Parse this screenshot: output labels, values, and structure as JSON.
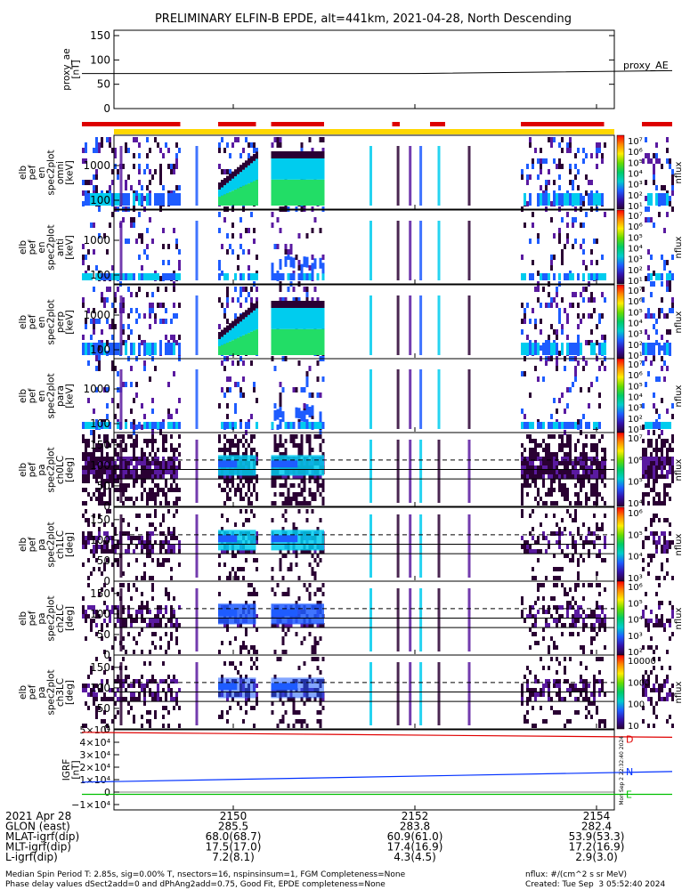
{
  "title": "PRELIMINARY ELFIN-B EPDE, alt=441km, 2021-04-28, North Descending",
  "colors": {
    "coverage_red": "#dd0000",
    "coverage_yellow": "#ffd700",
    "ae_line": "#000000",
    "mag_D": "#e00000",
    "mag_N": "#0030ff",
    "mag_E": "#00c000",
    "fill_dark": "#2a0033",
    "fill_purple": "#5a1aa0",
    "fill_blue": "#1e5cff",
    "fill_cyan": "#00ccee",
    "fill_green": "#22dd66"
  },
  "panels": {
    "ae": {
      "label_lines": [
        "proxy_ae",
        "[nT]"
      ],
      "side_label": "proxy_AE",
      "ticks": [
        "150",
        "100",
        "50",
        "0"
      ]
    },
    "energy": [
      {
        "label_lines": [
          "elb",
          "pef",
          "en",
          "spec2plot",
          "omni",
          "[keV]"
        ],
        "ticks": [
          "1000",
          "100"
        ]
      },
      {
        "label_lines": [
          "elb",
          "pef",
          "en",
          "spec2plot",
          "anti",
          "[keV]"
        ],
        "ticks": [
          "1000",
          "100"
        ]
      },
      {
        "label_lines": [
          "elb",
          "pef",
          "en",
          "spec2plot",
          "perp",
          "[keV]"
        ],
        "ticks": [
          "1000",
          "100"
        ]
      },
      {
        "label_lines": [
          "elb",
          "pef",
          "en",
          "spec2plot",
          "para",
          "[keV]"
        ],
        "ticks": [
          "1000",
          "100"
        ]
      }
    ],
    "pitch": [
      {
        "label_lines": [
          "elb",
          "pef",
          "pa",
          "spec2plot",
          "ch0LC",
          "[deg]"
        ],
        "ticks": [
          "150",
          "100",
          "50",
          "0"
        ]
      },
      {
        "label_lines": [
          "elb",
          "pef",
          "pa",
          "spec2plot",
          "ch1LC",
          "[deg]"
        ],
        "ticks": [
          "150",
          "100",
          "50",
          "0"
        ]
      },
      {
        "label_lines": [
          "elb",
          "pef",
          "pa",
          "spec2plot",
          "ch2LC",
          "[deg]"
        ],
        "ticks": [
          "150",
          "100",
          "50",
          "0"
        ]
      },
      {
        "label_lines": [
          "elb",
          "pef",
          "pa",
          "spec2plot",
          "ch3LC",
          "[deg]"
        ],
        "ticks": [
          "150",
          "100",
          "50",
          "0"
        ]
      }
    ],
    "igrf": {
      "label_lines": [
        "IGRF",
        "[nT]"
      ],
      "ticks": [
        "5×10⁴",
        "4×10⁴",
        "3×10⁴",
        "2×10⁴",
        "1×10⁴",
        "0",
        "−1×10⁴"
      ],
      "series_labels": [
        "D",
        "N",
        "E"
      ]
    }
  },
  "colorbars": [
    {
      "labels": [
        "10⁷",
        "10⁶",
        "10⁵",
        "10⁴",
        "10³",
        "10²",
        "10¹"
      ],
      "unit": "nflux"
    },
    {
      "labels": [
        "10⁷",
        "10⁶",
        "10⁵",
        "10⁴",
        "10³",
        "10²",
        "10¹"
      ],
      "unit": "nflux"
    },
    {
      "labels": [
        "10⁷",
        "10⁶",
        "10⁵",
        "10⁴",
        "10³",
        "10²",
        "10¹"
      ],
      "unit": "nflux"
    },
    {
      "labels": [
        "10⁷",
        "10⁶",
        "10⁵",
        "10⁴",
        "10³",
        "10²",
        "10¹"
      ],
      "unit": "nflux"
    },
    {
      "labels": [
        "10⁷",
        "10⁶",
        "10⁵",
        "10⁴"
      ],
      "unit": "nflux"
    },
    {
      "labels": [
        "10⁶",
        "10⁵",
        "10⁴",
        "10³"
      ],
      "unit": "nflux"
    },
    {
      "labels": [
        "10⁶",
        "10⁵",
        "10⁴",
        "10³",
        "10²"
      ],
      "unit": "nflux"
    },
    {
      "labels": [
        "10000",
        "1000",
        "100",
        "10"
      ],
      "unit": "nflux"
    }
  ],
  "created_stamp": "Mon Sep  2 22:32:40 2024",
  "xaxis": {
    "rows": [
      {
        "label": "2021 Apr 28",
        "values": [
          "2150",
          "2152",
          "2154"
        ]
      },
      {
        "label": "GLON (east)",
        "values": [
          "285.5",
          "283.8",
          "282.4"
        ]
      },
      {
        "label": "MLAT-igrf(dip)",
        "values": [
          "68.0(68.7)",
          "60.9(61.0)",
          "53.9(53.3)"
        ]
      },
      {
        "label": "MLT-igrf(dip)",
        "values": [
          "17.5(17.0)",
          "17.4(16.9)",
          "17.2(16.9)"
        ]
      },
      {
        "label": "L-igrf(dip)",
        "values": [
          "7.2(8.1)",
          "4.3(4.5)",
          "2.9(3.0)"
        ]
      }
    ]
  },
  "footer": {
    "left1": "Median Spin Period T: 2.85s, sig=0.00% T, nsectors=16, nspinsinsum=1, FGM Completeness=None",
    "left2": "Phase delay values dSect2add=0 and dPhAng2add=0.75, Good Fit, EPDE completeness=None",
    "right1": "nflux: #/(cm^2 s sr MeV)",
    "right2": "Created: Tue Sep  3 05:52:40 2024"
  },
  "chart_data": {
    "type": "heatmap",
    "title": "PRELIMINARY ELFIN-B EPDE, alt=441km, 2021-04-28, North Descending",
    "x_time_ticks": [
      "21:50",
      "21:52",
      "21:54"
    ],
    "proxy_ae": {
      "ylim": [
        0,
        150
      ],
      "ylabel": "proxy_ae [nT]",
      "x": [
        "21:48:20",
        "21:52:00",
        "21:54:50"
      ],
      "values": [
        72,
        72,
        78
      ]
    },
    "science_coverage": [
      [
        "21:48:20",
        "21:49:25"
      ],
      [
        "21:49:50",
        "21:50:15"
      ],
      [
        "21:50:25",
        "21:51:00"
      ],
      [
        "21:51:45",
        "21:51:50"
      ],
      [
        "21:52:10",
        "21:52:20"
      ],
      [
        "21:53:10",
        "21:54:05"
      ],
      [
        "21:54:30",
        "21:54:50"
      ]
    ],
    "energy_spectrograms": {
      "yscale": "log",
      "ylim_keV": [
        60,
        7000
      ],
      "zunits": "nflux",
      "zlim": [
        10,
        10000000
      ],
      "labels": [
        "omni",
        "anti",
        "perp",
        "para"
      ]
    },
    "pitch_spectrograms": {
      "ylim_deg": [
        0,
        180
      ],
      "zunits": "nflux",
      "labels": [
        "ch0LC",
        "ch1LC",
        "ch2LC",
        "ch3LC"
      ],
      "dashed_reference_deg": 113,
      "solid_reference_deg": [
        90,
        67
      ]
    },
    "igrf_field": {
      "ylim": [
        -10000,
        50000
      ],
      "ylabel": "IGRF [nT]",
      "series": [
        {
          "name": "D",
          "x": [
            "21:48:20",
            "21:54:50"
          ],
          "values": [
            48000,
            44000
          ]
        },
        {
          "name": "N",
          "x": [
            "21:48:20",
            "21:54:50"
          ],
          "values": [
            8000,
            16500
          ]
        },
        {
          "name": "E",
          "x": [
            "21:48:20",
            "21:54:50"
          ],
          "values": [
            -1800,
            -1800
          ]
        }
      ]
    }
  }
}
